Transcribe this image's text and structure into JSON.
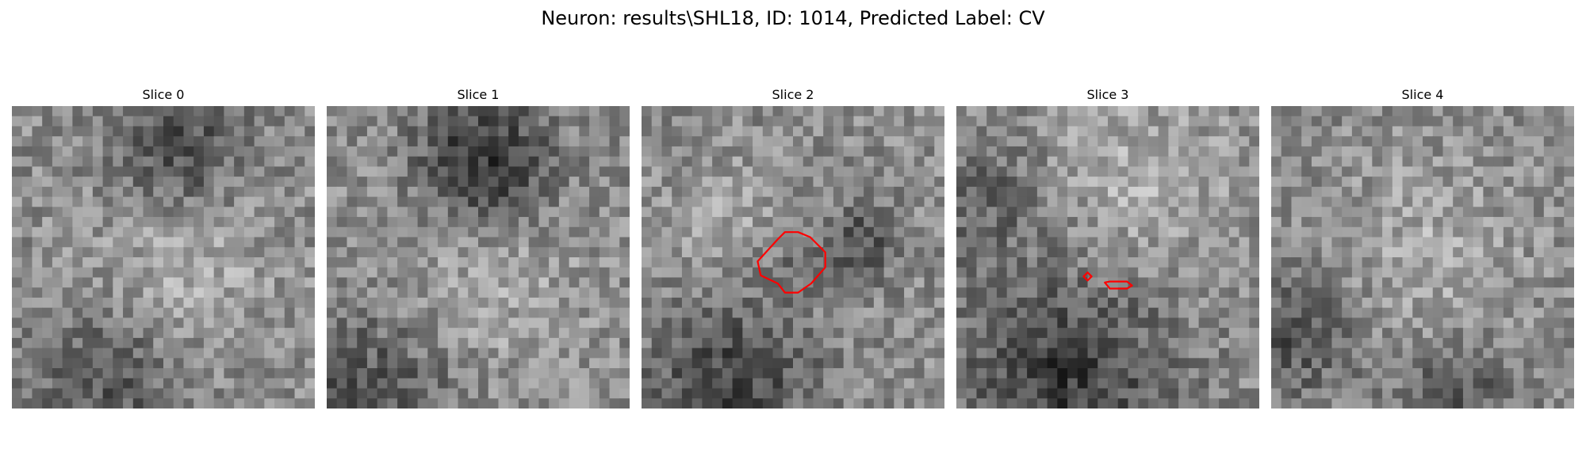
{
  "figure": {
    "title": "Neuron: results\\SHL18, ID: 1014, Predicted Label: CV"
  },
  "grid_size": 30,
  "contour_color": "#ff0000",
  "slices": [
    {
      "title": "Slice 0",
      "seed": 11,
      "contours": []
    },
    {
      "title": "Slice 1",
      "seed": 23,
      "contours": []
    },
    {
      "title": "Slice 2",
      "seed": 37,
      "contours": [
        {
          "label": "roi-outline",
          "points": [
            [
              13.5,
              13.2
            ],
            [
              11.5,
              15.4
            ],
            [
              11.8,
              16.8
            ],
            [
              13.5,
              17.6
            ],
            [
              14.2,
              18.5
            ],
            [
              15.5,
              18.5
            ],
            [
              16.8,
              17.6
            ],
            [
              18.2,
              16.0
            ],
            [
              18.2,
              14.5
            ],
            [
              16.7,
              13.0
            ],
            [
              15.5,
              12.5
            ],
            [
              14.2,
              12.5
            ]
          ]
        }
      ]
    },
    {
      "title": "Slice 3",
      "seed": 41,
      "contours": [
        {
          "label": "roi-outline-small-a",
          "points": [
            [
              12.6,
              16.9
            ],
            [
              13.0,
              17.3
            ],
            [
              13.4,
              16.9
            ],
            [
              13.0,
              16.5
            ]
          ]
        },
        {
          "label": "roi-outline-small-b",
          "points": [
            [
              14.7,
              17.5
            ],
            [
              15.2,
              18.1
            ],
            [
              16.9,
              18.1
            ],
            [
              17.4,
              17.8
            ],
            [
              16.9,
              17.4
            ],
            [
              15.2,
              17.4
            ]
          ]
        }
      ]
    },
    {
      "title": "Slice 4",
      "seed": 53,
      "contours": []
    }
  ]
}
